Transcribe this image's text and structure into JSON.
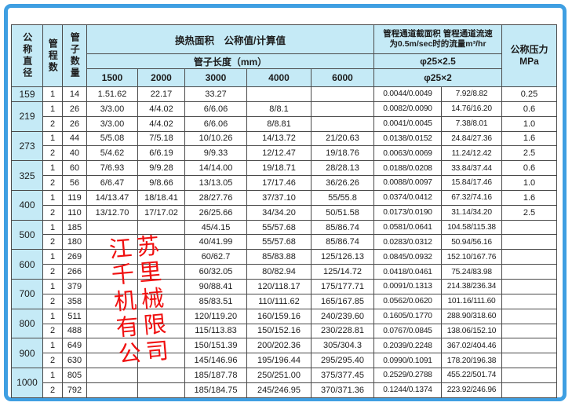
{
  "colors": {
    "frame": "#3f9fe2",
    "header_bg": "#c5eaf6",
    "border": "#4a4a4a",
    "text": "#1c1c1c",
    "watermark": "#f01010"
  },
  "header": {
    "col_diameter": "公称直径",
    "col_passes": "管程数",
    "col_tubes": "管子数量",
    "area_group_title": "换热面积　公称值/计算值",
    "tube_length_title": "管子长度（mm）",
    "lengths": [
      "1500",
      "2000",
      "3000",
      "4000",
      "6000"
    ],
    "channel_group_line1": "管程通道截面积 管程通道流速",
    "channel_group_line2": "为0.5m/sec时的流量m³/hr",
    "phi_row1": "φ25×2.5",
    "phi_row2": "φ25×2",
    "pressure_title": "公称压力",
    "pressure_unit": "MPa"
  },
  "rows": [
    {
      "dn": "159",
      "dn_span": 1,
      "passes": "1",
      "tube_count": "14",
      "area": [
        "1.51.62",
        "22.17",
        "33.27",
        "",
        ""
      ],
      "section_area": "0.0044/0.0049",
      "flow": "7.92/8.82",
      "pressure": "0.25"
    },
    {
      "dn": "219",
      "dn_span": 2,
      "passes": "1",
      "tube_count": "26",
      "area": [
        "3/3.00",
        "4/4.02",
        "6/6.06",
        "8/8.1",
        ""
      ],
      "section_area": "0.0082/0.0090",
      "flow": "14.76/16.20",
      "pressure": "0.6"
    },
    {
      "dn": "",
      "dn_span": 0,
      "passes": "2",
      "tube_count": "26",
      "area": [
        "3/3.00",
        "4/4.02",
        "6/6.06",
        "8/8.81",
        ""
      ],
      "section_area": "0.0041/0.0045",
      "flow": "7.38/8.01",
      "pressure": "1.0"
    },
    {
      "dn": "273",
      "dn_span": 2,
      "passes": "1",
      "tube_count": "44",
      "area": [
        "5/5.08",
        "7/5.18",
        "10/10.26",
        "14/13.72",
        "21/20.63"
      ],
      "section_area": "0.0138/0.0152",
      "flow": "24.84/27.36",
      "pressure": "1.6"
    },
    {
      "dn": "",
      "dn_span": 0,
      "passes": "2",
      "tube_count": "40",
      "area": [
        "5/4.62",
        "6/6.19",
        "9/9.33",
        "12/12.47",
        "19/18.76"
      ],
      "section_area": "0.0063/0.0069",
      "flow": "11.24/12.42",
      "pressure": "2.5"
    },
    {
      "dn": "325",
      "dn_span": 2,
      "passes": "1",
      "tube_count": "60",
      "area": [
        "7/6.93",
        "9/9.28",
        "14/14.00",
        "19/18.71",
        "28/28.13"
      ],
      "section_area": "0.0188/0.0208",
      "flow": "33.84/37.44",
      "pressure": "0.6"
    },
    {
      "dn": "",
      "dn_span": 0,
      "passes": "2",
      "tube_count": "56",
      "area": [
        "6/6.47",
        "9/8.66",
        "13/13.05",
        "17/17.46",
        "36/26.26"
      ],
      "section_area": "0.0088/0.0097",
      "flow": "15.84/17.46",
      "pressure": "1.0"
    },
    {
      "dn": "400",
      "dn_span": 2,
      "passes": "1",
      "tube_count": "119",
      "area": [
        "14/13.47",
        "18/18.41",
        "28/27.76",
        "37/37.10",
        "55/55.8"
      ],
      "section_area": "0.0374/0.0412",
      "flow": "67.32/74.16",
      "pressure": "1.6"
    },
    {
      "dn": "",
      "dn_span": 0,
      "passes": "2",
      "tube_count": "110",
      "area": [
        "13/12.70",
        "17/17.02",
        "26/25.66",
        "34/34.20",
        "50/51.58"
      ],
      "section_area": "0.0173/0.0190",
      "flow": "31.14/34.20",
      "pressure": "2.5"
    },
    {
      "dn": "500",
      "dn_span": 2,
      "passes": "1",
      "tube_count": "185",
      "area": [
        "",
        "",
        "45/4.15",
        "55/57.68",
        "85/86.74"
      ],
      "section_area": "0.0581/0.0641",
      "flow": "104.58/115.38",
      "pressure": ""
    },
    {
      "dn": "",
      "dn_span": 0,
      "passes": "2",
      "tube_count": "180",
      "area": [
        "",
        "",
        "40/41.99",
        "55/57.68",
        "85/86.74"
      ],
      "section_area": "0.0283/0.0312",
      "flow": "50.94/56.16",
      "pressure": ""
    },
    {
      "dn": "600",
      "dn_span": 2,
      "passes": "1",
      "tube_count": "269",
      "area": [
        "",
        "",
        "60/62.7",
        "85/83.88",
        "125/126.13"
      ],
      "section_area": "0.0845/0.0932",
      "flow": "152.10/167.76",
      "pressure": ""
    },
    {
      "dn": "",
      "dn_span": 0,
      "passes": "2",
      "tube_count": "266",
      "area": [
        "",
        "",
        "60/32.05",
        "80/82.94",
        "125/14.72"
      ],
      "section_area": "0.0418/0.0461",
      "flow": "75.24/83.98",
      "pressure": ""
    },
    {
      "dn": "700",
      "dn_span": 2,
      "passes": "1",
      "tube_count": "379",
      "area": [
        "",
        "",
        "90/88.41",
        "120/118.17",
        "175/177.71"
      ],
      "section_area": "0.0091/0.1313",
      "flow": "214.38/236.34",
      "pressure": ""
    },
    {
      "dn": "",
      "dn_span": 0,
      "passes": "2",
      "tube_count": "358",
      "area": [
        "",
        "",
        "85/83.51",
        "110/111.62",
        "165/167.85"
      ],
      "section_area": "0.0562/0.0620",
      "flow": "101.16/111.60",
      "pressure": ""
    },
    {
      "dn": "800",
      "dn_span": 2,
      "passes": "1",
      "tube_count": "511",
      "area": [
        "",
        "",
        "120/119.20",
        "160/159.16",
        "240/239.60"
      ],
      "section_area": "0.1605/0.1770",
      "flow": "288.90/318.60",
      "pressure": ""
    },
    {
      "dn": "",
      "dn_span": 0,
      "passes": "2",
      "tube_count": "488",
      "area": [
        "",
        "",
        "115/113.83",
        "150/152.16",
        "230/228.81"
      ],
      "section_area": "0.0767/0.0845",
      "flow": "138.06/152.10",
      "pressure": ""
    },
    {
      "dn": "900",
      "dn_span": 2,
      "passes": "1",
      "tube_count": "649",
      "area": [
        "",
        "",
        "150/151.39",
        "200/202.36",
        "305/304.3"
      ],
      "section_area": "0.2039/0.2248",
      "flow": "367.02/404.46",
      "pressure": ""
    },
    {
      "dn": "",
      "dn_span": 0,
      "passes": "2",
      "tube_count": "630",
      "area": [
        "",
        "",
        "145/146.96",
        "195/196.44",
        "295/295.40"
      ],
      "section_area": "0.0990/0.1091",
      "flow": "178.20/196.38",
      "pressure": ""
    },
    {
      "dn": "1000",
      "dn_span": 2,
      "passes": "1",
      "tube_count": "805",
      "area": [
        "",
        "",
        "185/187.78",
        "250/251.00",
        "375/377.45"
      ],
      "section_area": "0.2529/0.2788",
      "flow": "455.22/501.74",
      "pressure": ""
    },
    {
      "dn": "",
      "dn_span": 0,
      "passes": "2",
      "tube_count": "792",
      "area": [
        "",
        "",
        "185/184.75",
        "245/246.95",
        "370/371.36"
      ],
      "section_area": "0.1244/0.1374",
      "flow": "223.92/246.96",
      "pressure": ""
    }
  ],
  "watermark": {
    "lines": [
      "江苏",
      "千里",
      "机械",
      "有限",
      "公司"
    ]
  }
}
